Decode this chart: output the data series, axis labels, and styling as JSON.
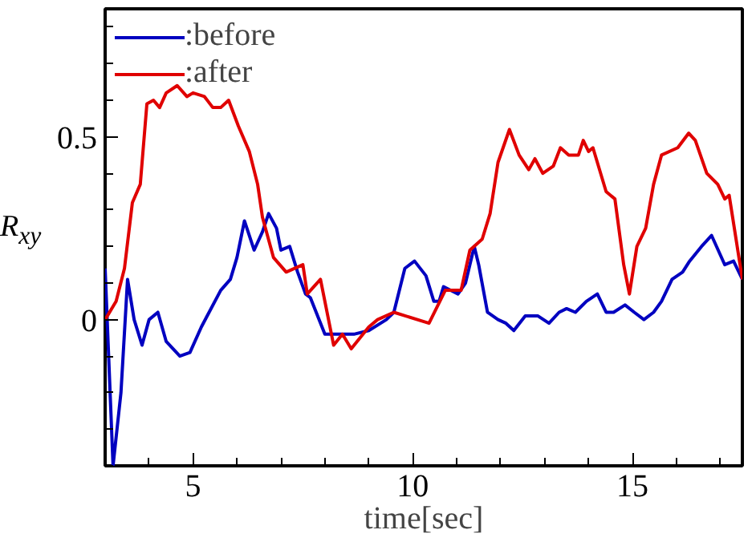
{
  "chart_data": {
    "type": "line",
    "xlabel": "time[sec]",
    "ylabel": "R$_{xy}$",
    "xlim": [
      3,
      17.5
    ],
    "ylim": [
      -0.4,
      0.85
    ],
    "xticks": [
      5,
      10,
      15
    ],
    "yticks": [
      0,
      0.5
    ],
    "grid": false,
    "legend": "top left",
    "line_style": "solid",
    "series": [
      {
        "name": ":before",
        "color": "#0000c0",
        "x": [
          3,
          3.18,
          3.36,
          3.51,
          3.66,
          3.84,
          4.0,
          4.2,
          4.39,
          4.7,
          4.93,
          5.19,
          5.63,
          5.85,
          6.0,
          6.17,
          6.39,
          6.58,
          6.72,
          6.9,
          7.0,
          7.2,
          7.38,
          7.56,
          7.67,
          8.0,
          8.66,
          9.0,
          9.4,
          9.57,
          9.82,
          10.04,
          10.3,
          10.48,
          10.6,
          10.7,
          11.03,
          11.2,
          11.4,
          11.5,
          11.7,
          11.94,
          12.12,
          12.3,
          12.56,
          12.85,
          13.1,
          13.33,
          13.5,
          13.7,
          13.95,
          14.2,
          14.4,
          14.57,
          14.83,
          15.04,
          15.26,
          15.48,
          15.66,
          15.9,
          16.14,
          16.3,
          16.57,
          16.8,
          17.1,
          17.3,
          17.5
        ],
        "values": [
          0.14,
          -0.4,
          -0.2,
          0.11,
          0,
          -0.07,
          0,
          0.02,
          -0.06,
          -0.1,
          -0.09,
          -0.02,
          0.08,
          0.11,
          0.17,
          0.27,
          0.19,
          0.24,
          0.29,
          0.25,
          0.19,
          0.2,
          0.13,
          0.07,
          0.06,
          -0.04,
          -0.04,
          -0.03,
          0,
          0.02,
          0.14,
          0.16,
          0.12,
          0.05,
          0.05,
          0.09,
          0.07,
          0.1,
          0.2,
          0.15,
          0.02,
          0,
          -0.01,
          -0.03,
          0.01,
          0.01,
          -0.01,
          0.02,
          0.03,
          0.02,
          0.05,
          0.07,
          0.02,
          0.02,
          0.04,
          0.02,
          0,
          0.02,
          0.05,
          0.11,
          0.13,
          0.16,
          0.2,
          0.23,
          0.15,
          0.16,
          0.11
        ]
      },
      {
        "name": ":after",
        "color": "#e00000",
        "x": [
          3,
          3.25,
          3.44,
          3.62,
          3.8,
          3.95,
          4.1,
          4.24,
          4.39,
          4.64,
          4.86,
          5.0,
          5.26,
          5.45,
          5.63,
          5.81,
          6.03,
          6.28,
          6.47,
          6.58,
          6.83,
          7.12,
          7.5,
          7.6,
          7.9,
          8.2,
          8.4,
          8.6,
          9.0,
          9.2,
          9.57,
          10.37,
          10.74,
          11.1,
          11.3,
          11.58,
          11.76,
          11.94,
          12.2,
          12.42,
          12.64,
          12.78,
          12.96,
          13.2,
          13.36,
          13.55,
          13.77,
          13.88,
          14.0,
          14.1,
          14.4,
          14.6,
          14.8,
          14.93,
          15.1,
          15.3,
          15.48,
          15.66,
          16.03,
          16.28,
          16.43,
          16.69,
          16.94,
          17.1,
          17.2,
          17.5
        ],
        "values": [
          0,
          0.05,
          0.14,
          0.32,
          0.37,
          0.59,
          0.6,
          0.58,
          0.62,
          0.64,
          0.61,
          0.62,
          0.61,
          0.58,
          0.58,
          0.6,
          0.53,
          0.46,
          0.37,
          0.28,
          0.17,
          0.13,
          0.15,
          0.07,
          0.11,
          -0.07,
          -0.04,
          -0.08,
          -0.02,
          0,
          0.02,
          -0.01,
          0.08,
          0.08,
          0.19,
          0.22,
          0.29,
          0.43,
          0.52,
          0.45,
          0.41,
          0.44,
          0.4,
          0.42,
          0.47,
          0.45,
          0.45,
          0.49,
          0.46,
          0.47,
          0.35,
          0.33,
          0.15,
          0.07,
          0.2,
          0.25,
          0.37,
          0.45,
          0.47,
          0.51,
          0.49,
          0.4,
          0.37,
          0.33,
          0.34,
          0.11
        ]
      }
    ]
  }
}
